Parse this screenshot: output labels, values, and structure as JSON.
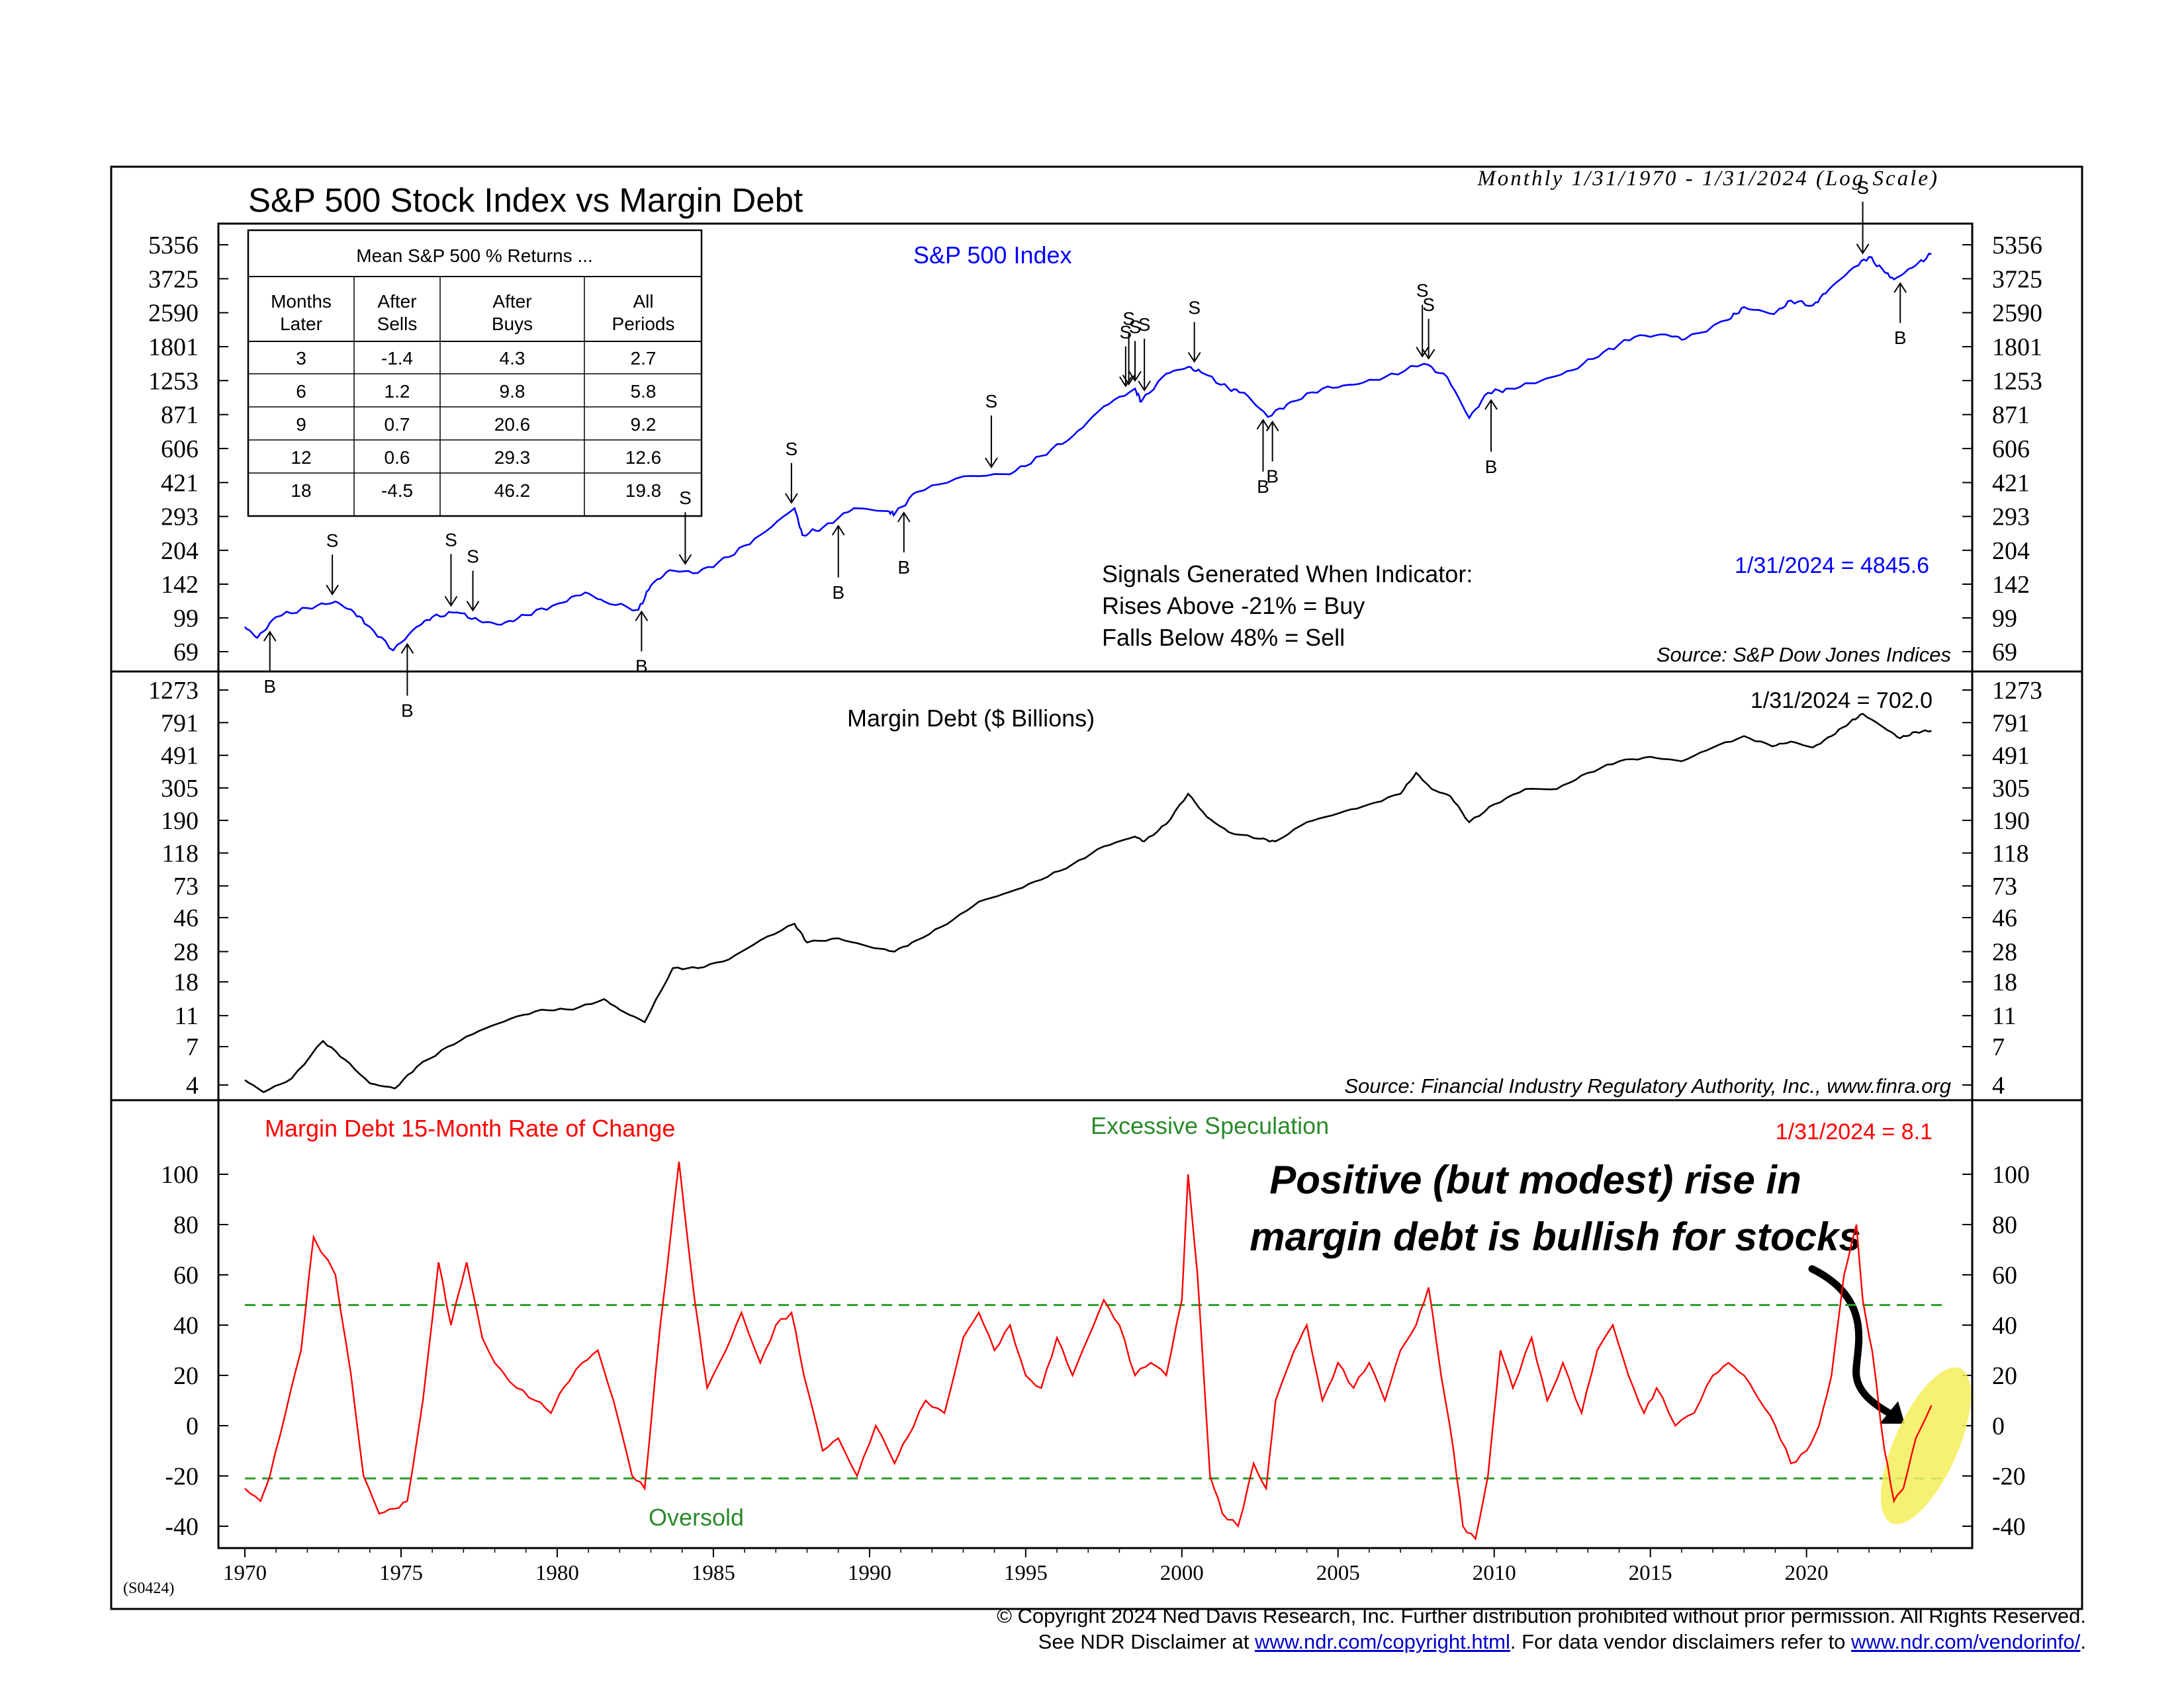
{
  "header": {
    "title": "S&P 500 Stock Index vs Margin Debt",
    "subtitle": "Monthly 1/31/1970 - 1/31/2024 (Log Scale)",
    "code": "(S0424)"
  },
  "x_ticks": [
    "1970",
    "1975",
    "1980",
    "1985",
    "1990",
    "1995",
    "2000",
    "2005",
    "2010",
    "2015",
    "2020"
  ],
  "returns_table": {
    "title": "Mean S&P 500 % Returns ...",
    "headers": [
      [
        "Months",
        "Later"
      ],
      [
        "After",
        "Sells"
      ],
      [
        "After",
        "Buys"
      ],
      [
        "All",
        "Periods"
      ]
    ],
    "rows": [
      [
        "3",
        "-1.4",
        "4.3",
        "2.7"
      ],
      [
        "6",
        "1.2",
        "9.8",
        "5.8"
      ],
      [
        "9",
        "0.7",
        "20.6",
        "9.2"
      ],
      [
        "12",
        "0.6",
        "29.3",
        "12.6"
      ],
      [
        "18",
        "-4.5",
        "46.2",
        "19.8"
      ]
    ]
  },
  "panel1": {
    "label": "S&P 500 Index",
    "signals_text": [
      "Signals Generated When Indicator:",
      "Rises Above -21% = Buy",
      "Falls Below 48% = Sell"
    ],
    "last_value": "1/31/2024 = 4845.6",
    "source": "Source: S&P Dow Jones Indices",
    "color": "#0000ff"
  },
  "panel2": {
    "label": "Margin Debt ($ Billions)",
    "last_value": "1/31/2024 = 702.0",
    "source": "Source: Financial Industry Regulatory Authority, Inc., www.finra.org",
    "color": "#000000"
  },
  "panel3": {
    "label": "Margin Debt 15-Month Rate of Change",
    "last_value": "1/31/2024 = 8.1",
    "upper_label": "Excessive Speculation",
    "lower_label": "Oversold",
    "color": "#ff0000",
    "threshold_color": "#2a9d2a",
    "highlight_color": "#f5ef5a"
  },
  "annotation": {
    "line1": "Positive (but modest) rise in",
    "line2": "margin debt is bullish for stocks"
  },
  "footer": {
    "line1": "© Copyright 2024 Ned Davis Research, Inc.  Further distribution prohibited without prior permission.  All Rights Reserved.",
    "line2_prefix": "See NDR Disclaimer at ",
    "link1": "www.ndr.com/copyright.html",
    "line2_middle": ". For data vendor disclaimers refer to ",
    "link2": "www.ndr.com/vendorinfo/",
    "line2_suffix": "."
  },
  "chart_data": [
    {
      "type": "line",
      "title": "S&P 500 Index",
      "scale": "log",
      "y_ticks": [
        69,
        99,
        142,
        204,
        293,
        421,
        606,
        871,
        1253,
        1801,
        2590,
        3725,
        5356
      ],
      "x": [
        1970.0,
        1970.4,
        1971.0,
        1972.0,
        1972.9,
        1973.5,
        1974.0,
        1974.75,
        1975.5,
        1976.0,
        1976.8,
        1977.5,
        1978.2,
        1979.0,
        1980.0,
        1980.9,
        1981.5,
        1982.6,
        1983.0,
        1983.6,
        1984.5,
        1985.5,
        1986.5,
        1987.6,
        1987.85,
        1988.5,
        1989.5,
        1990.6,
        1990.8,
        1991.5,
        1993.0,
        1994.5,
        1995.5,
        1996.5,
        1997.5,
        1998.5,
        1998.7,
        1999.5,
        2000.2,
        2000.7,
        2001.5,
        2002.0,
        2002.75,
        2003.5,
        2004.5,
        2005.5,
        2006.5,
        2007.75,
        2008.5,
        2009.2,
        2009.8,
        2010.5,
        2011.5,
        2012.5,
        2013.5,
        2014.5,
        2015.5,
        2016.1,
        2017.5,
        2018.0,
        2018.95,
        2019.5,
        2020.2,
        2020.7,
        2021.5,
        2022.0,
        2022.5,
        2022.8,
        2023.5,
        2024.0
      ],
      "y": [
        90,
        80,
        100,
        110,
        118,
        105,
        90,
        70,
        90,
        100,
        105,
        96,
        92,
        102,
        115,
        130,
        118,
        108,
        140,
        165,
        160,
        190,
        240,
        320,
        240,
        260,
        320,
        310,
        300,
        380,
        450,
        460,
        560,
        690,
        950,
        1150,
        1000,
        1350,
        1450,
        1350,
        1150,
        1100,
        850,
        1000,
        1150,
        1200,
        1300,
        1500,
        1300,
        840,
        1100,
        1150,
        1250,
        1400,
        1700,
        2000,
        2050,
        1950,
        2400,
        2750,
        2550,
        2950,
        2800,
        3300,
        4200,
        4700,
        4000,
        3700,
        4300,
        4850
      ],
      "sell_signals": [
        "1972.8",
        "1976.6",
        "1977.3",
        "1984.1",
        "1987.5",
        "1993.9",
        "1998.2",
        "1998.3",
        "1998.5",
        "1998.8",
        "2000.4",
        "2007.7",
        "2007.9",
        "2021.8"
      ],
      "buy_signals": [
        "1970.8",
        "1975.2",
        "1982.7",
        "1989.0",
        "1991.1",
        "2002.6",
        "2002.9",
        "2009.9",
        "2023.0"
      ]
    },
    {
      "type": "line",
      "title": "Margin Debt ($ Billions)",
      "scale": "log",
      "y_ticks": [
        4,
        7,
        11,
        18,
        28,
        46,
        73,
        118,
        190,
        305,
        491,
        791,
        1273
      ],
      "x": [
        1970.0,
        1970.6,
        1971.5,
        1972.5,
        1973.2,
        1974.0,
        1974.8,
        1975.5,
        1976.5,
        1977.5,
        1978.5,
        1979.5,
        1980.5,
        1981.5,
        1982.0,
        1982.8,
        1983.7,
        1984.5,
        1985.5,
        1986.5,
        1987.6,
        1988.0,
        1989.0,
        1990.0,
        1990.8,
        1991.5,
        1992.5,
        1993.5,
        1994.5,
        1995.5,
        1996.5,
        1997.5,
        1998.5,
        1998.8,
        1999.5,
        2000.2,
        2000.8,
        2001.5,
        2002.5,
        2003.0,
        2004.0,
        2005.0,
        2006.0,
        2007.0,
        2007.5,
        2008.0,
        2008.6,
        2009.2,
        2010.0,
        2011.0,
        2012.0,
        2013.0,
        2014.0,
        2015.0,
        2016.0,
        2017.0,
        2018.0,
        2018.9,
        2019.5,
        2020.2,
        2020.8,
        2021.4,
        2021.8,
        2022.5,
        2023.0,
        2023.5,
        2024.0
      ],
      "y": [
        4.3,
        3.6,
        4.4,
        7.6,
        5.8,
        4.1,
        3.8,
        5.2,
        7.0,
        8.8,
        10.5,
        12,
        12,
        14,
        12,
        10,
        22,
        22,
        25,
        33,
        42,
        32,
        34,
        30,
        28,
        33,
        42,
        58,
        67,
        80,
        100,
        130,
        150,
        140,
        180,
        280,
        200,
        160,
        145,
        140,
        185,
        210,
        240,
        280,
        380,
        300,
        270,
        185,
        240,
        300,
        300,
        380,
        450,
        480,
        450,
        550,
        650,
        560,
        600,
        550,
        650,
        800,
        900,
        730,
        630,
        690,
        702
      ]
    },
    {
      "type": "line",
      "title": "Margin Debt 15-Month Rate of Change",
      "y_ticks": [
        -40,
        -20,
        0,
        20,
        40,
        60,
        80,
        100
      ],
      "thresholds": {
        "sell": 48,
        "buy": -21
      },
      "x": [
        1970.0,
        1970.5,
        1970.8,
        1971.3,
        1971.8,
        1972.2,
        1972.9,
        1973.4,
        1973.8,
        1974.3,
        1974.8,
        1975.2,
        1975.7,
        1976.2,
        1976.6,
        1977.1,
        1977.6,
        1978.0,
        1978.7,
        1979.3,
        1979.8,
        1980.2,
        1980.8,
        1981.3,
        1981.8,
        1982.4,
        1982.8,
        1983.3,
        1983.9,
        1984.4,
        1984.8,
        1985.4,
        1985.9,
        1986.5,
        1987.0,
        1987.5,
        1987.9,
        1988.5,
        1989.0,
        1989.6,
        1990.2,
        1990.8,
        1991.2,
        1991.8,
        1992.4,
        1993.0,
        1993.5,
        1994.0,
        1994.5,
        1995.0,
        1995.5,
        1996.0,
        1996.5,
        1997.0,
        1997.5,
        1998.0,
        1998.5,
        1999.0,
        1999.5,
        2000.0,
        2000.2,
        2000.5,
        2000.9,
        2001.3,
        2001.8,
        2002.3,
        2002.7,
        2003.0,
        2003.6,
        2004.0,
        2004.5,
        2005.0,
        2005.5,
        2006.0,
        2006.5,
        2007.0,
        2007.5,
        2007.9,
        2008.3,
        2008.7,
        2009.0,
        2009.4,
        2009.8,
        2010.2,
        2010.6,
        2011.2,
        2011.7,
        2012.2,
        2012.8,
        2013.3,
        2013.8,
        2014.3,
        2014.8,
        2015.2,
        2015.8,
        2016.4,
        2017.0,
        2017.5,
        2018.0,
        2018.5,
        2019.0,
        2019.5,
        2020.0,
        2020.4,
        2020.8,
        2021.2,
        2021.6,
        2021.8,
        2022.1,
        2022.5,
        2022.8,
        2023.1,
        2023.5,
        2024.0
      ],
      "y": [
        -25,
        -30,
        -20,
        5,
        30,
        75,
        60,
        20,
        -20,
        -35,
        -33,
        -30,
        10,
        65,
        40,
        65,
        35,
        25,
        15,
        10,
        5,
        15,
        25,
        30,
        10,
        -20,
        -25,
        40,
        105,
        50,
        15,
        30,
        45,
        25,
        40,
        45,
        20,
        -10,
        -5,
        -20,
        0,
        -15,
        -5,
        10,
        5,
        35,
        45,
        30,
        40,
        20,
        15,
        35,
        20,
        35,
        50,
        40,
        20,
        25,
        20,
        50,
        100,
        60,
        -20,
        -35,
        -40,
        -15,
        -25,
        10,
        30,
        40,
        10,
        25,
        15,
        25,
        10,
        30,
        40,
        55,
        20,
        -10,
        -40,
        -45,
        -20,
        30,
        15,
        35,
        10,
        25,
        5,
        30,
        40,
        20,
        5,
        15,
        0,
        5,
        20,
        25,
        20,
        10,
        0,
        -15,
        -10,
        0,
        20,
        60,
        80,
        50,
        30,
        -10,
        -30,
        -25,
        -5,
        8.1
      ]
    }
  ]
}
